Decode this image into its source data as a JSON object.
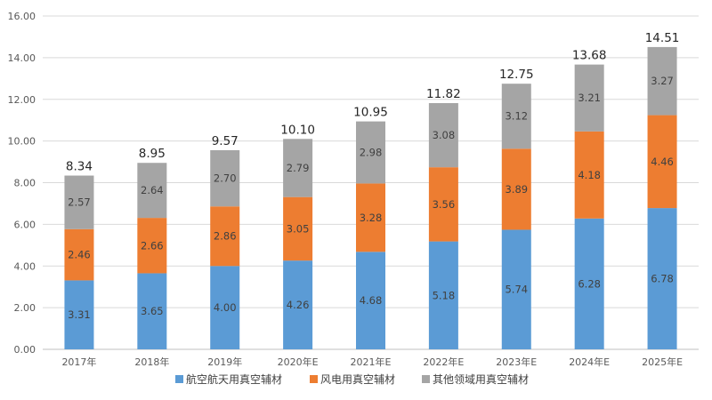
{
  "chart_data": {
    "type": "bar",
    "stacked": true,
    "categories": [
      "2017年",
      "2018年",
      "2019年",
      "2020年E",
      "2021年E",
      "2022年E",
      "2023年E",
      "2024年E",
      "2025年E"
    ],
    "series": [
      {
        "name": "航空航天用真空辅材",
        "color": "#5b9bd5",
        "values": [
          3.31,
          3.65,
          4.0,
          4.26,
          4.68,
          5.18,
          5.74,
          6.28,
          6.78
        ]
      },
      {
        "name": "风电用真空辅材",
        "color": "#ed7d31",
        "values": [
          2.46,
          2.66,
          2.86,
          3.05,
          3.28,
          3.56,
          3.89,
          4.18,
          4.46
        ]
      },
      {
        "name": "其他领域用真空辅材",
        "color": "#a5a5a5",
        "values": [
          2.57,
          2.64,
          2.7,
          2.79,
          2.98,
          3.08,
          3.12,
          3.21,
          3.27
        ]
      }
    ],
    "totals": [
      8.34,
      8.95,
      9.57,
      10.1,
      10.95,
      11.82,
      12.75,
      13.68,
      14.51
    ],
    "ylim": [
      0,
      16
    ],
    "yticks": [
      "0.00",
      "2.00",
      "4.00",
      "6.00",
      "8.00",
      "10.00",
      "12.00",
      "14.00",
      "16.00"
    ],
    "grid": true,
    "legend_position": "bottom"
  }
}
